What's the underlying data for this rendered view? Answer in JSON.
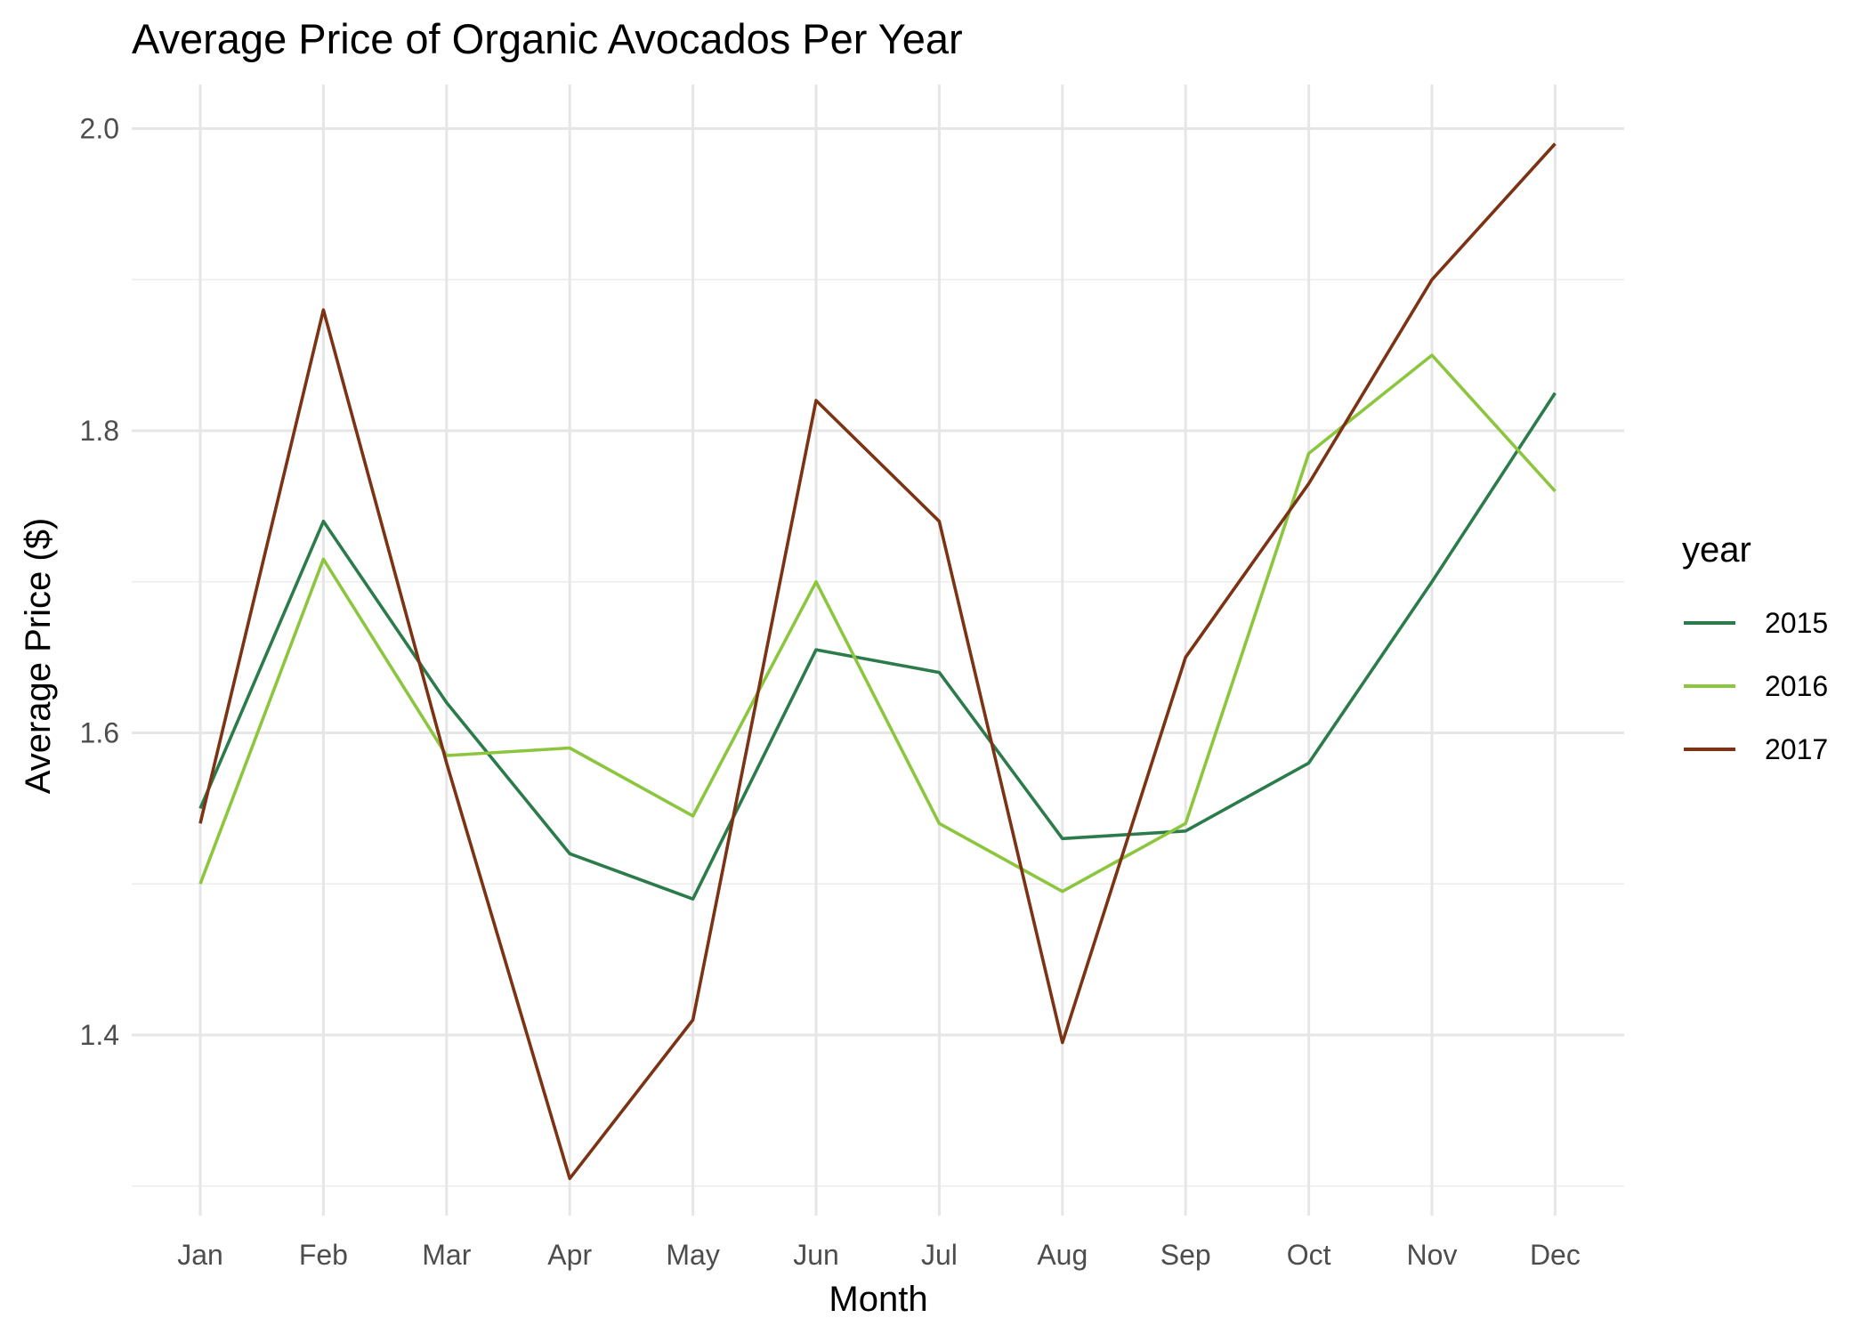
{
  "chart_data": {
    "type": "line",
    "title": "Average Price of Organic Avocados Per Year",
    "xlabel": "Month",
    "ylabel": "Average Price ($)",
    "categories": [
      "Jan",
      "Feb",
      "Mar",
      "Apr",
      "May",
      "Jun",
      "Jul",
      "Aug",
      "Sep",
      "Oct",
      "Nov",
      "Dec"
    ],
    "ylim": [
      1.3,
      2.01
    ],
    "yticks": [
      "1.4",
      "1.6",
      "1.8",
      "2.0"
    ],
    "grid": true,
    "legend": {
      "title": "year",
      "placement": "right"
    },
    "series": [
      {
        "name": "2015",
        "color": "#2b7b4b",
        "values": [
          1.55,
          1.74,
          1.62,
          1.52,
          1.49,
          1.655,
          1.64,
          1.53,
          1.535,
          1.58,
          1.7,
          1.825
        ]
      },
      {
        "name": "2016",
        "color": "#8cc63f",
        "values": [
          1.5,
          1.715,
          1.585,
          1.59,
          1.545,
          1.7,
          1.54,
          1.495,
          1.54,
          1.785,
          1.85,
          1.76
        ]
      },
      {
        "name": "2017",
        "color": "#7b3314",
        "values": [
          1.54,
          1.88,
          1.58,
          1.305,
          1.41,
          1.82,
          1.74,
          1.395,
          1.65,
          1.765,
          1.9,
          1.99
        ]
      }
    ]
  }
}
